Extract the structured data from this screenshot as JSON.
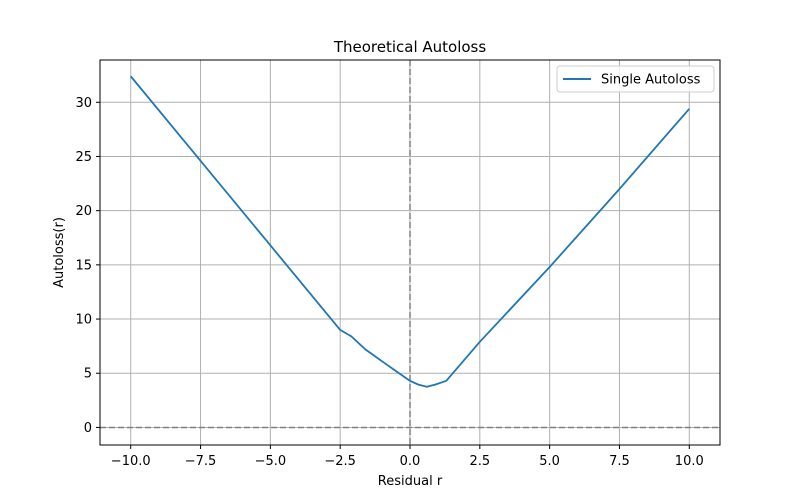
{
  "chart_data": {
    "type": "line",
    "title": "Theoretical Autoloss",
    "xlabel": "Residual r",
    "ylabel": "Autoloss(r)",
    "xlim": [
      -11.1,
      11.1
    ],
    "ylim": [
      -1.62,
      33.9
    ],
    "xticks": [
      -10.0,
      -7.5,
      -5.0,
      -2.5,
      0.0,
      2.5,
      5.0,
      7.5,
      10.0
    ],
    "xtick_labels": [
      "−10.0",
      "−7.5",
      "−5.0",
      "−2.5",
      "0.0",
      "2.5",
      "5.0",
      "7.5",
      "10.0"
    ],
    "yticks": [
      0,
      5,
      10,
      15,
      20,
      25,
      30
    ],
    "ytick_labels": [
      "0",
      "5",
      "10",
      "15",
      "20",
      "25",
      "30"
    ],
    "grid": true,
    "legend_position": "top-right",
    "reference_lines": [
      {
        "orientation": "horizontal",
        "value": 0,
        "style": "dashed",
        "color": "#808080"
      },
      {
        "orientation": "vertical",
        "value": 0,
        "style": "dashed",
        "color": "#808080"
      }
    ],
    "series": [
      {
        "name": "Single Autoloss",
        "color": "#1f77b4",
        "x": [
          -10.0,
          -7.5,
          -5.0,
          -2.5,
          -2.1,
          -1.6,
          -1.0,
          -0.5,
          0.0,
          0.3,
          0.6,
          0.9,
          1.3,
          2.5,
          5.0,
          7.5,
          10.0
        ],
        "y": [
          32.4,
          24.6,
          16.8,
          9.0,
          8.4,
          7.2,
          6.1,
          5.2,
          4.3,
          3.95,
          3.75,
          3.95,
          4.3,
          7.9,
          14.8,
          22.0,
          29.4
        ]
      }
    ]
  }
}
